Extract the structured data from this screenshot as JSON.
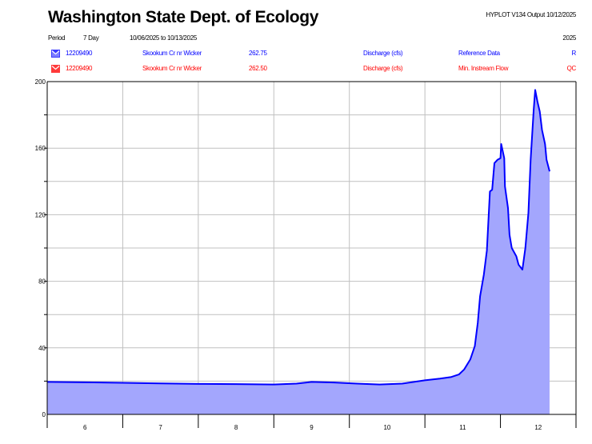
{
  "header": {
    "title": "Washington State Dept. of Ecology",
    "version": "HYPLOT V134  Output 10/12/2025",
    "period_label": "Period",
    "period_value": "7 Day",
    "date_range": "10/06/2025  to  10/13/2025",
    "year": "2025"
  },
  "legend": [
    {
      "icon": "hydrograph-icon-blue",
      "color": "#0000ff",
      "station": "12209490",
      "name": "Skookum Cr nr Wicker",
      "code": "262.75",
      "param": "Discharge (cfs)",
      "type": "Reference Data",
      "flag": "R"
    },
    {
      "icon": "hydrograph-icon-red",
      "color": "#ff0000",
      "station": "12209490",
      "name": "Skookum Cr nr Wicker",
      "code": "262.50",
      "param": "Discharge (cfs)",
      "type": "Min. Instream Flow",
      "flag": "QC"
    }
  ],
  "chart_data": {
    "type": "area",
    "title": "Washington State Dept. of Ecology",
    "xlabel": "",
    "ylabel": "Discharge (cfs)",
    "xlim": [
      0,
      7
    ],
    "ylim": [
      0,
      200
    ],
    "x_unit": "days since 10/06/2025 00:00",
    "x_ticks": [
      {
        "pos": 0.5,
        "label": "6"
      },
      {
        "pos": 1.5,
        "label": "7"
      },
      {
        "pos": 2.5,
        "label": "8"
      },
      {
        "pos": 3.5,
        "label": "9"
      },
      {
        "pos": 4.5,
        "label": "10"
      },
      {
        "pos": 5.5,
        "label": "11"
      },
      {
        "pos": 6.5,
        "label": "12"
      }
    ],
    "y_ticks": [
      0,
      40,
      80,
      120,
      160,
      200
    ],
    "y_grid_step": 20,
    "grid": true,
    "line_color": "#0000ff",
    "fill_color": "#a3a6fd",
    "series": [
      {
        "name": "Skookum Cr nr Wicker Discharge (cfs)",
        "x": [
          0,
          0.5,
          1.0,
          1.5,
          2.0,
          2.5,
          3.0,
          3.3,
          3.5,
          3.8,
          4.1,
          4.4,
          4.7,
          5.0,
          5.2,
          5.35,
          5.45,
          5.52,
          5.6,
          5.66,
          5.7,
          5.73,
          5.78,
          5.82,
          5.86,
          5.89,
          5.92,
          5.96,
          6.0,
          6.01,
          6.05,
          6.06,
          6.1,
          6.12,
          6.15,
          6.21,
          6.24,
          6.29,
          6.33,
          6.37,
          6.4,
          6.44,
          6.46,
          6.49,
          6.52,
          6.55,
          6.59,
          6.61,
          6.65
        ],
        "y": [
          19.5,
          19.3,
          19,
          18.6,
          18.3,
          18.2,
          18,
          18.5,
          19.5,
          19.2,
          18.5,
          18,
          18.5,
          20.5,
          21.5,
          22.5,
          24,
          27,
          33,
          41,
          55,
          71,
          84,
          98.5,
          134,
          135,
          151,
          153,
          154,
          162.5,
          154,
          137,
          124,
          108,
          100,
          95,
          90,
          87,
          100,
          121,
          153,
          183,
          195,
          188,
          182,
          171,
          162.5,
          153,
          146
        ]
      }
    ]
  }
}
